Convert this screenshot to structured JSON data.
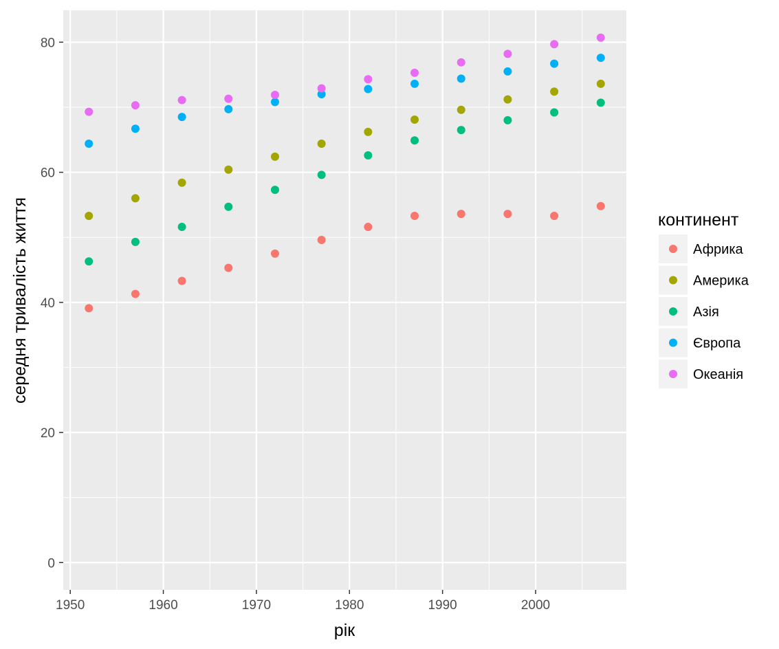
{
  "chart_data": {
    "type": "scatter",
    "xlabel": "рік",
    "ylabel": "середня тривалість життя",
    "x": [
      1952,
      1957,
      1962,
      1967,
      1972,
      1977,
      1982,
      1987,
      1992,
      1997,
      2002,
      2007
    ],
    "xlim": [
      1949.25,
      2009.75
    ],
    "ylim": [
      -4.2,
      84.9
    ],
    "x_ticks": [
      1950,
      1960,
      1970,
      1980,
      1990,
      2000
    ],
    "x_tick_labels": [
      "1950",
      "1960",
      "1970",
      "1980",
      "1990",
      "2000"
    ],
    "y_ticks": [
      0,
      20,
      40,
      60,
      80
    ],
    "y_tick_labels": [
      "0",
      "20",
      "40",
      "60",
      "80"
    ],
    "grid": true,
    "background": "#ebebeb",
    "legend": {
      "title": "континент",
      "position": "right"
    },
    "series": [
      {
        "name": "Африка",
        "color": "#f8766d",
        "values": [
          39.1,
          41.3,
          43.3,
          45.3,
          47.5,
          49.6,
          51.6,
          53.3,
          53.6,
          53.6,
          53.3,
          54.8
        ]
      },
      {
        "name": "Америка",
        "color": "#a3a500",
        "values": [
          53.3,
          56.0,
          58.4,
          60.4,
          62.4,
          64.4,
          66.2,
          68.1,
          69.6,
          71.2,
          72.4,
          73.6
        ]
      },
      {
        "name": "Азія",
        "color": "#00bf7d",
        "values": [
          46.3,
          49.3,
          51.6,
          54.7,
          57.3,
          59.6,
          62.6,
          64.9,
          66.5,
          68.0,
          69.2,
          70.7
        ]
      },
      {
        "name": "Європа",
        "color": "#00b0f6",
        "values": [
          64.4,
          66.7,
          68.5,
          69.7,
          70.8,
          72.0,
          72.8,
          73.6,
          74.4,
          75.5,
          76.7,
          77.6
        ]
      },
      {
        "name": "Океанія",
        "color": "#e76bf3",
        "values": [
          69.3,
          70.3,
          71.1,
          71.3,
          71.9,
          72.9,
          74.3,
          75.3,
          76.9,
          78.2,
          79.7,
          80.7
        ]
      }
    ]
  }
}
